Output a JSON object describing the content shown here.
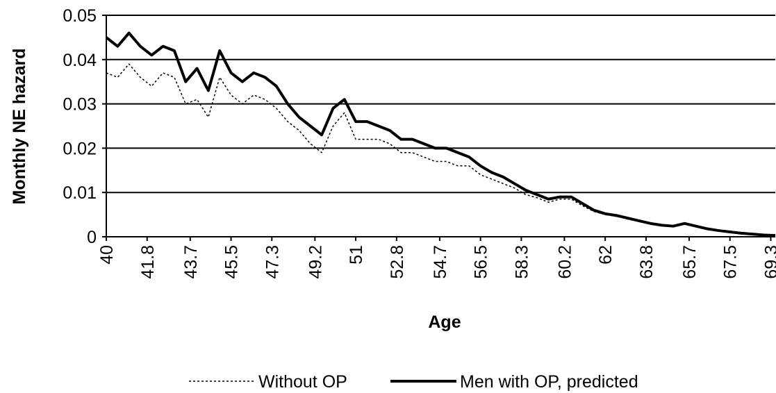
{
  "chart_data": {
    "type": "line",
    "xlabel": "Age",
    "ylabel": "Monthly NE hazard",
    "x": [
      40,
      40.5,
      41,
      41.5,
      42,
      42.5,
      43,
      43.5,
      44,
      44.5,
      45,
      45.5,
      46,
      46.5,
      47,
      47.5,
      48,
      48.5,
      49,
      49.5,
      50,
      50.5,
      51,
      51.5,
      52,
      52.5,
      53,
      53.5,
      54,
      54.5,
      55,
      55.5,
      56,
      56.5,
      57,
      57.5,
      58,
      58.5,
      59,
      59.5,
      60,
      60.5,
      61,
      61.5,
      62,
      62.5,
      63,
      63.5,
      64,
      64.5,
      65,
      65.5,
      66,
      66.5,
      67,
      67.5,
      68,
      68.5,
      69,
      69.5
    ],
    "series": [
      {
        "name": "Without OP",
        "color": "#000000",
        "dash": true,
        "values": [
          0.037,
          0.036,
          0.039,
          0.036,
          0.034,
          0.037,
          0.036,
          0.03,
          0.031,
          0.027,
          0.036,
          0.032,
          0.03,
          0.032,
          0.031,
          0.029,
          0.026,
          0.024,
          0.021,
          0.019,
          0.025,
          0.028,
          0.022,
          0.022,
          0.022,
          0.021,
          0.019,
          0.019,
          0.018,
          0.017,
          0.017,
          0.016,
          0.016,
          0.014,
          0.013,
          0.012,
          0.011,
          0.0095,
          0.0088,
          0.0078,
          0.0085,
          0.0085,
          0.007,
          0.0057,
          0.005,
          0.0046,
          0.004,
          0.0034,
          0.0029,
          0.0025,
          0.0023,
          0.0028,
          0.0023,
          0.0017,
          0.0013,
          0.001,
          0.0007,
          0.0005,
          0.0004,
          0.0003
        ]
      },
      {
        "name": "Men with OP, predicted",
        "color": "#000000",
        "dash": false,
        "values": [
          0.045,
          0.043,
          0.046,
          0.043,
          0.041,
          0.043,
          0.042,
          0.035,
          0.038,
          0.033,
          0.042,
          0.037,
          0.035,
          0.037,
          0.036,
          0.034,
          0.03,
          0.027,
          0.025,
          0.023,
          0.029,
          0.031,
          0.026,
          0.026,
          0.025,
          0.024,
          0.022,
          0.022,
          0.021,
          0.02,
          0.02,
          0.019,
          0.018,
          0.016,
          0.0145,
          0.0135,
          0.012,
          0.0105,
          0.0095,
          0.0085,
          0.009,
          0.009,
          0.0075,
          0.006,
          0.0052,
          0.0048,
          0.0042,
          0.0036,
          0.003,
          0.0026,
          0.0024,
          0.003,
          0.0024,
          0.0018,
          0.0014,
          0.0011,
          0.0008,
          0.0006,
          0.0004,
          0.0003
        ]
      }
    ],
    "xlim": [
      40,
      69.5
    ],
    "xticks": [
      40,
      41.8,
      43.7,
      45.5,
      47.3,
      49.2,
      51,
      52.8,
      54.7,
      56.5,
      58.3,
      60.2,
      62,
      63.8,
      65.7,
      67.5,
      69.3
    ],
    "ylim": [
      0,
      0.05
    ],
    "yticks": [
      0,
      0.01,
      0.02,
      0.03,
      0.04,
      0.05
    ],
    "grid": true,
    "legend": "bottom"
  }
}
